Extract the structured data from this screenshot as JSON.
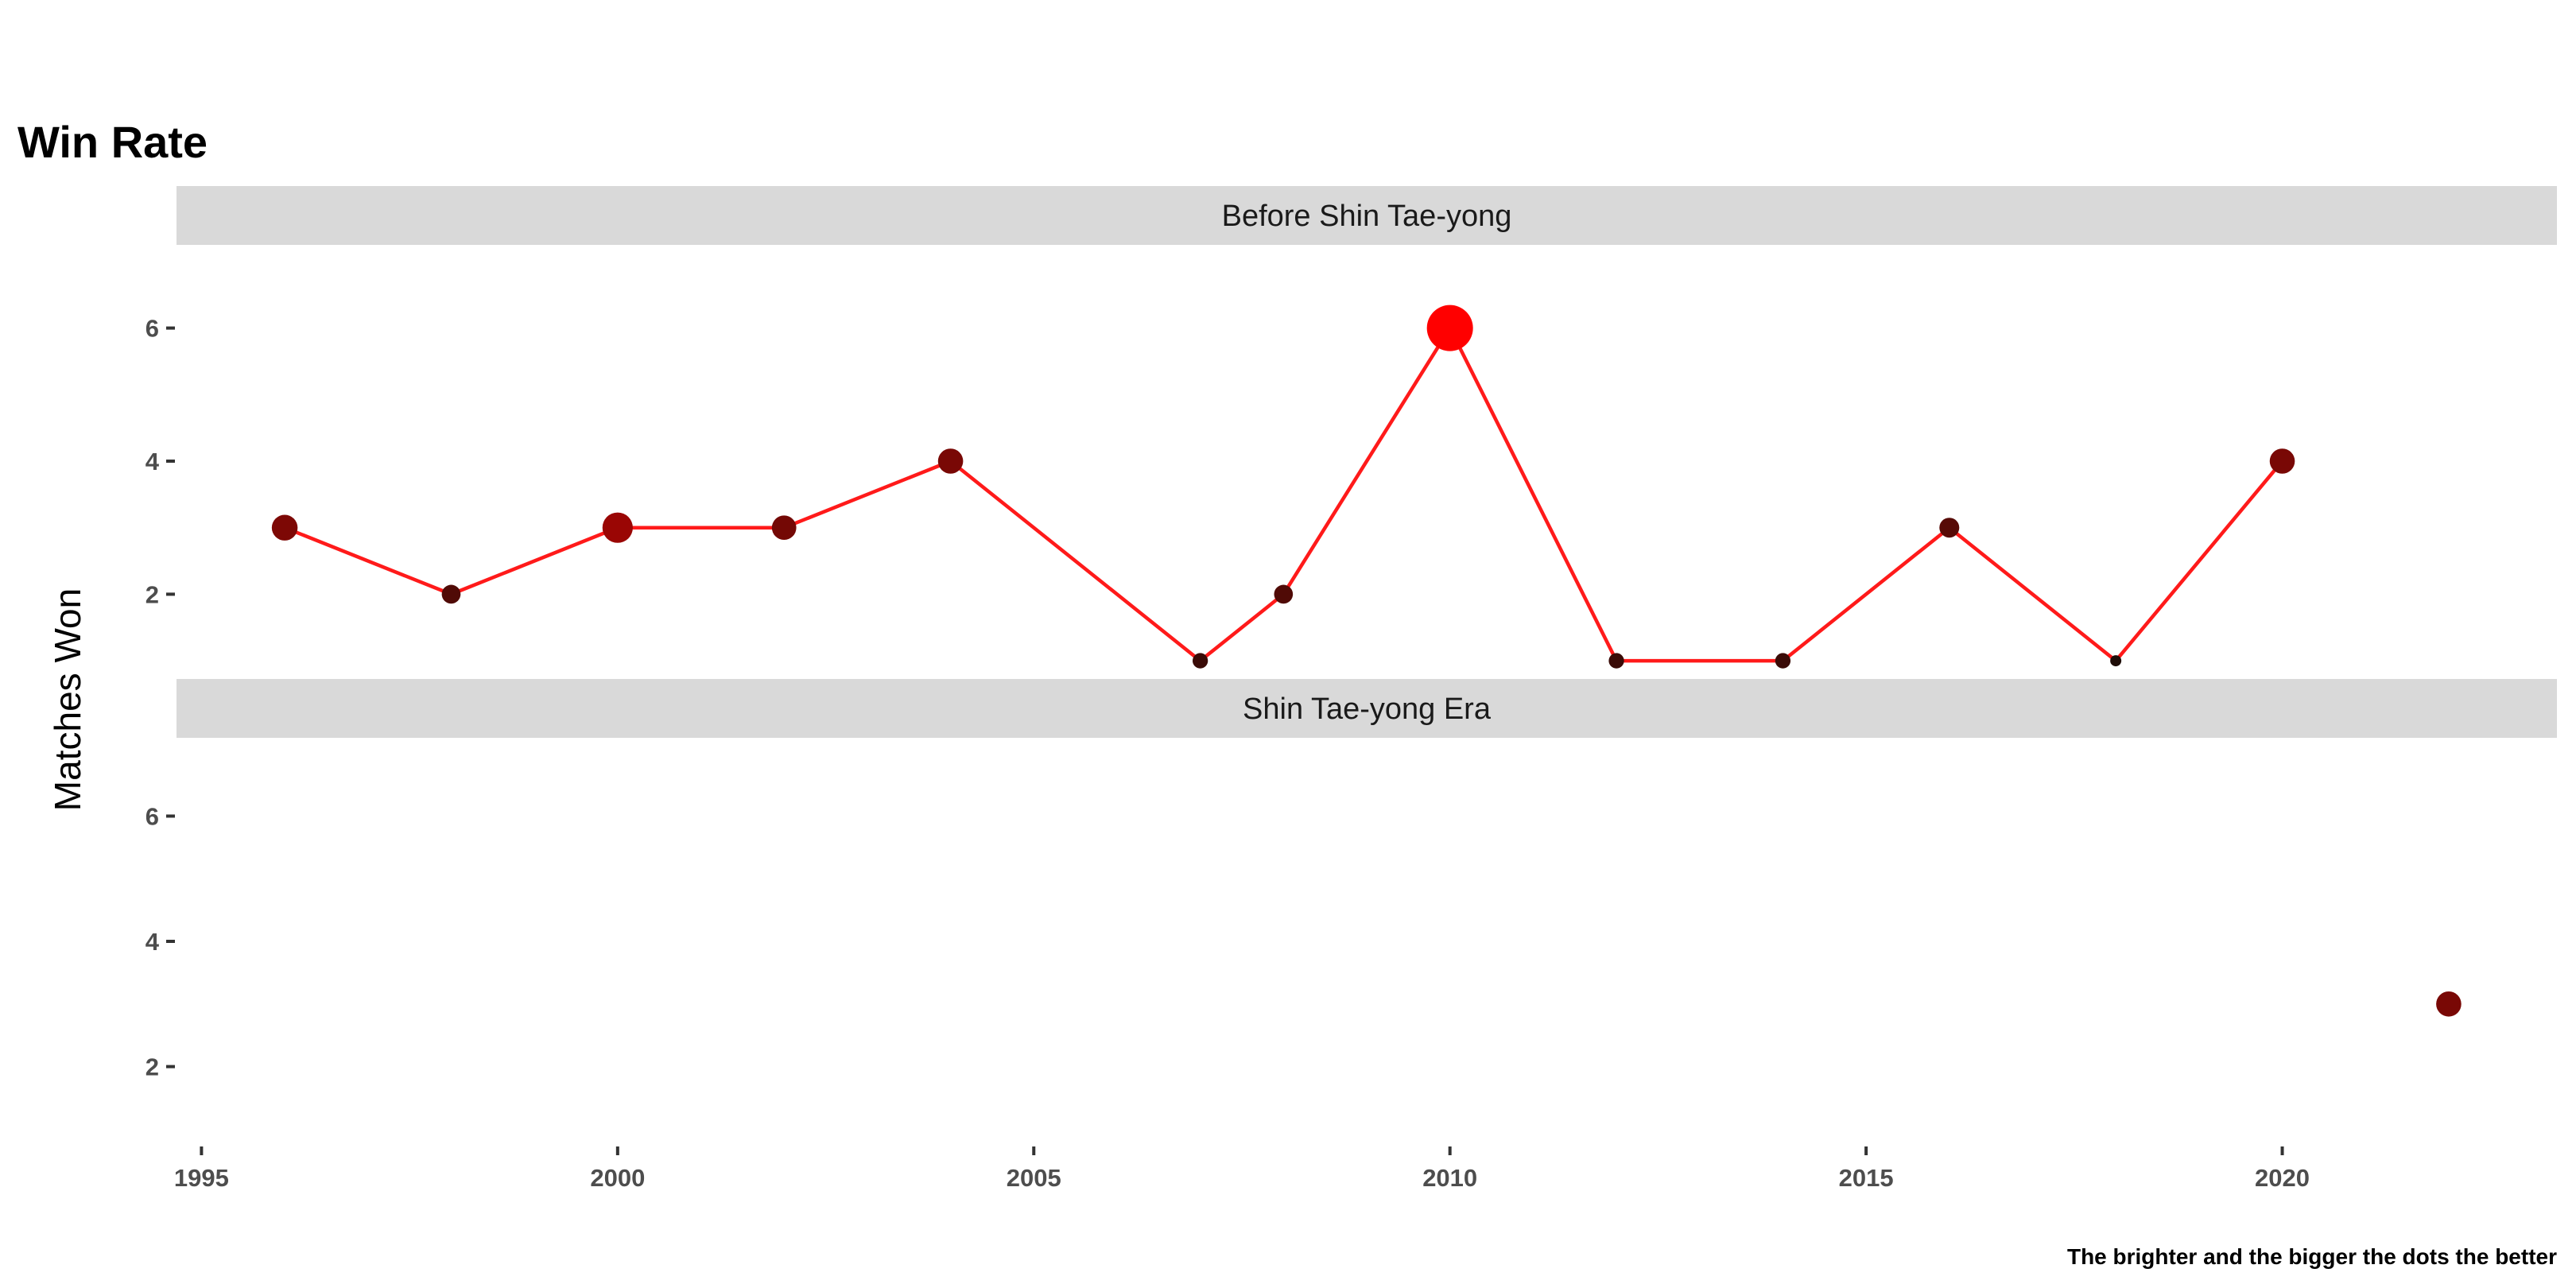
{
  "chart_data": {
    "type": "scatter",
    "title": "Win Rate",
    "xlabel": "",
    "ylabel": "Matches Won",
    "caption": "The brighter and the bigger the dots the better",
    "xlim": [
      1994.7,
      2023.3
    ],
    "ylim": [
      0.75,
      7.25
    ],
    "x_ticks": [
      1995,
      2000,
      2005,
      2010,
      2015,
      2020
    ],
    "y_ticks": [
      2,
      4,
      6
    ],
    "grid": false,
    "line_color": "#ff1a1a",
    "dot_color_low": "#1f0d08",
    "dot_color_high": "#ff0000",
    "panels": [
      {
        "label": "Before Shin Tae-yong",
        "points": [
          {
            "year": 1996,
            "won": 3,
            "rate": 0.42
          },
          {
            "year": 1998,
            "won": 2,
            "rate": 0.22
          },
          {
            "year": 2000,
            "won": 3,
            "rate": 0.55
          },
          {
            "year": 2002,
            "won": 3,
            "rate": 0.38
          },
          {
            "year": 2004,
            "won": 4,
            "rate": 0.4
          },
          {
            "year": 2007,
            "won": 1,
            "rate": 0.12
          },
          {
            "year": 2008,
            "won": 2,
            "rate": 0.22
          },
          {
            "year": 2010,
            "won": 6,
            "rate": 1.0
          },
          {
            "year": 2012,
            "won": 1,
            "rate": 0.12
          },
          {
            "year": 2014,
            "won": 1,
            "rate": 0.12
          },
          {
            "year": 2016,
            "won": 3,
            "rate": 0.25
          },
          {
            "year": 2018,
            "won": 1,
            "rate": 0.0
          },
          {
            "year": 2020,
            "won": 4,
            "rate": 0.4
          }
        ]
      },
      {
        "label": "Shin Tae-yong Era",
        "points": [
          {
            "year": 2022,
            "won": 3,
            "rate": 0.4
          }
        ]
      }
    ]
  }
}
